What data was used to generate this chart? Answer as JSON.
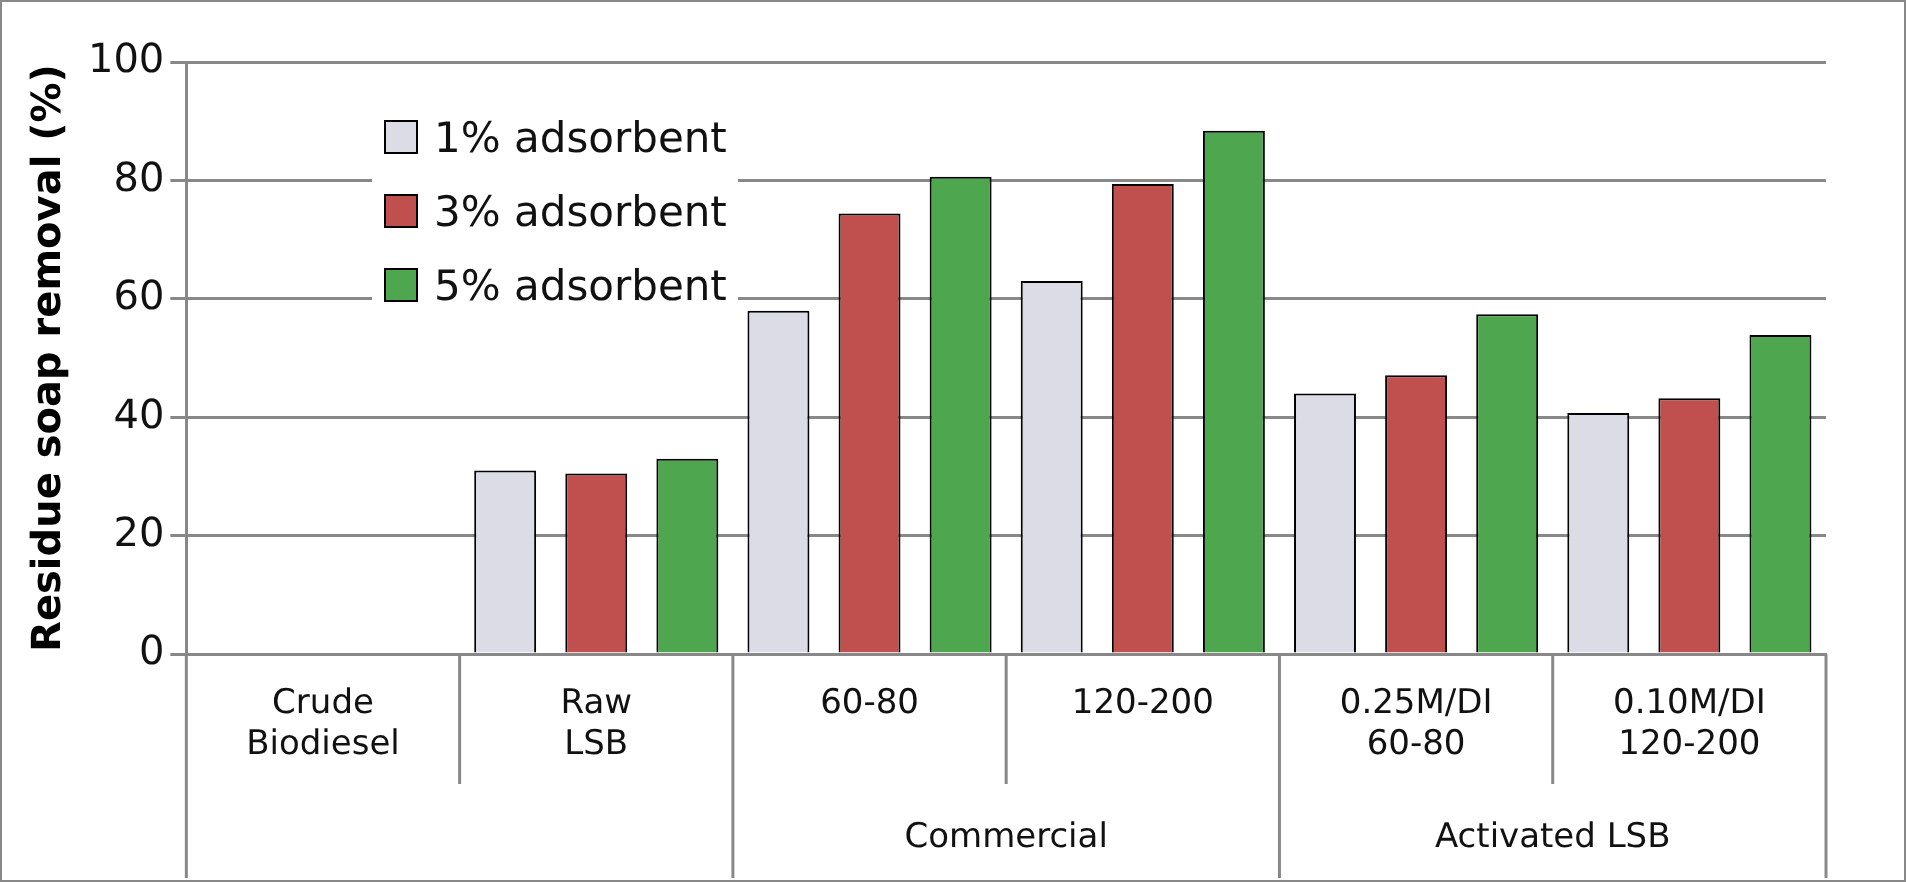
{
  "chart_data": {
    "type": "bar",
    "ylabel": "Residue soap removal (%)",
    "categories": [
      "Crude\nBiodiesel",
      "Raw\nLSB",
      "60-80",
      "120-200",
      "0.25M/DI\n60-80",
      "0.10M/DI\n120-200"
    ],
    "series": [
      {
        "name": "1% adsorbent",
        "color": "#dcdce6",
        "values": [
          0,
          31,
          58,
          63,
          44,
          40.7
        ]
      },
      {
        "name": "3% adsorbent",
        "color": "#c0504d",
        "values": [
          0,
          30.5,
          74.4,
          79.4,
          47.1,
          43.2
        ]
      },
      {
        "name": "5% adsorbent",
        "color": "#4ea64e",
        "values": [
          0,
          33,
          80.6,
          88.4,
          57.4,
          53.9
        ]
      }
    ],
    "annotations": [
      "Commercial",
      "Activated LSB"
    ],
    "ylim": [
      0,
      100
    ],
    "yticks": [
      0,
      20,
      40,
      60,
      80,
      100
    ],
    "grid": "y",
    "legend": "top left"
  }
}
